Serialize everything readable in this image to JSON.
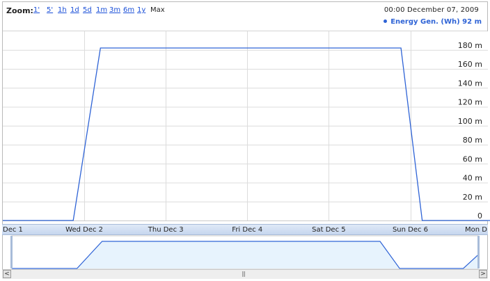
{
  "toolbar": {
    "zoom_label": "Zoom:",
    "zoom_options": [
      "1'",
      "5'",
      "1h",
      "1d",
      "5d",
      "1m",
      "3m",
      "6m",
      "1y"
    ],
    "zoom_active": "Max"
  },
  "header": {
    "timestamp": "00:00 December 07, 2009",
    "legend": "Energy Gen. (Wh) 92 m"
  },
  "timeline": {
    "labels": [
      "Dec 1",
      "Wed Dec 2",
      "Thu Dec 3",
      "Fri Dec 4",
      "Sat Dec 5",
      "Sun Dec 6",
      "Mon D"
    ]
  },
  "scrollbar": {
    "left_arrow": "<",
    "right_arrow": ">",
    "grip": "|||"
  },
  "colors": {
    "series": "#2e63d6",
    "grid": "#dcdcdc",
    "overview_fill": "#e7f3fd"
  },
  "chart_data": {
    "type": "line",
    "xlabel": "",
    "ylabel": "",
    "ylim": [
      0,
      190
    ],
    "grid": true,
    "y_tick_labels": [
      "0",
      "20 m",
      "40 m",
      "60 m",
      "80 m",
      "100 m",
      "120 m",
      "140 m",
      "160 m",
      "180 m"
    ],
    "y_ticks": [
      0,
      20,
      40,
      60,
      80,
      100,
      120,
      140,
      160,
      180
    ],
    "x_tick_labels": [
      "Dec 1",
      "Wed Dec 2",
      "Thu Dec 3",
      "Fri Dec 4",
      "Sat Dec 5",
      "Sun Dec 6",
      "Mon D"
    ],
    "x_tick_times": [
      "2009-12-01",
      "2009-12-02",
      "2009-12-03",
      "2009-12-04",
      "2009-12-05",
      "2009-12-06",
      "2009-12-07"
    ],
    "series": [
      {
        "name": "Energy Gen. (Wh)",
        "x": [
          "2009-12-01 00:00",
          "2009-12-01 20:45",
          "2009-12-02 04:45",
          "2009-12-05 21:15",
          "2009-12-06 03:30",
          "2009-12-06 23:45",
          "2009-12-07 04:30"
        ],
        "y": [
          0,
          0,
          182,
          182,
          0,
          0,
          92
        ]
      }
    ]
  }
}
